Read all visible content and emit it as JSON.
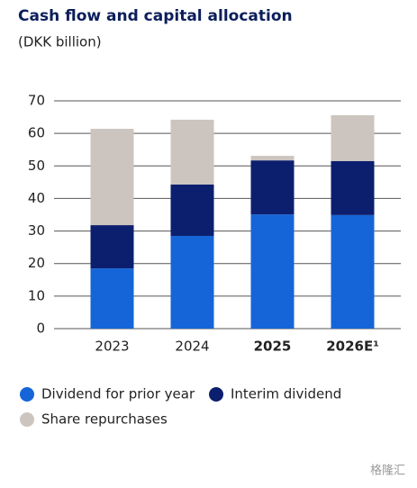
{
  "chart_data": {
    "type": "stacked_bar",
    "title": "Cash flow and capital allocation",
    "subtitle": "(DKK billion)",
    "categories": [
      "2023",
      "2024",
      "2025",
      "2026E¹"
    ],
    "bold_categories": [
      false,
      false,
      true,
      true
    ],
    "series": [
      {
        "name": "Dividend for prior year",
        "color": "#1565d8",
        "values": [
          18.5,
          28.5,
          35.1,
          34.9
        ]
      },
      {
        "name": "Interim dividend",
        "color": "#0c1f6e",
        "values": [
          13.3,
          15.8,
          16.6,
          16.6
        ]
      },
      {
        "name": "Share repurchases",
        "color": "#ccc5bf",
        "values": [
          29.6,
          19.9,
          1.4,
          14.1
        ]
      }
    ],
    "ylim": [
      0,
      70
    ],
    "yticks": [
      0,
      10,
      20,
      30,
      40,
      50,
      60,
      70
    ],
    "grid": true,
    "watermark": "格隆汇"
  }
}
